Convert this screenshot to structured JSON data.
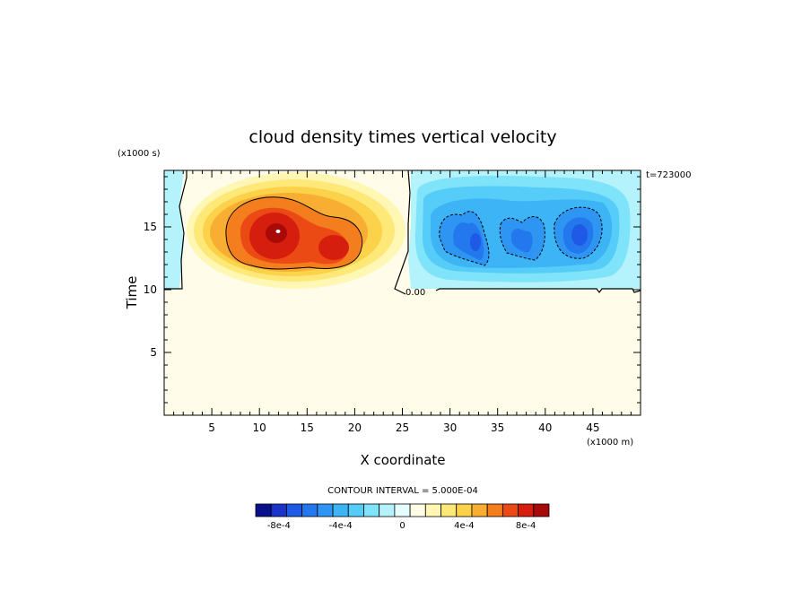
{
  "chart_data": {
    "type": "heatmap",
    "title": "cloud density times vertical velocity",
    "xlabel": "X coordinate",
    "ylabel": "Time",
    "x_scale_label": "(x1000 m)",
    "y_scale_label": "(x1000 s)",
    "time_label": "t=723000",
    "xlim": [
      0,
      50
    ],
    "ylim": [
      0,
      19.5
    ],
    "x_ticks": [
      5,
      10,
      15,
      20,
      25,
      30,
      35,
      40,
      45
    ],
    "y_ticks": [
      5,
      10,
      15
    ],
    "contour_interval_text": "CONTOUR INTERVAL = 5.000E-04",
    "contour_interval": 0.0005,
    "zero_contour_label": "0.00",
    "features": [
      {
        "name": "positive updraft maximum",
        "x": 12,
        "y": 15,
        "peak": 0.0009
      },
      {
        "name": "positive secondary maximum",
        "x": 17.5,
        "y": 13.5,
        "peak": 0.0007
      },
      {
        "name": "negative minimum west",
        "x": 33,
        "y": 14,
        "peak": -0.0007
      },
      {
        "name": "negative minimum central",
        "x": 38.5,
        "y": 14.5,
        "peak": -0.0006
      },
      {
        "name": "negative minimum east",
        "x": 44,
        "y": 14.5,
        "peak": -0.0007
      }
    ],
    "colorbar": {
      "levels": [
        -0.0009,
        -0.0008,
        -0.0007,
        -0.0006,
        -0.0005,
        -0.0004,
        -0.0003,
        -0.0002,
        -0.0001,
        0,
        0.0001,
        0.0002,
        0.0003,
        0.0004,
        0.0005,
        0.0006,
        0.0007,
        0.0008,
        0.0009
      ],
      "tick_labels": [
        "-8e-4",
        "-4e-4",
        "0",
        "4e-4",
        "8e-4"
      ],
      "tick_values": [
        -0.0008,
        -0.0004,
        0,
        0.0004,
        0.0008
      ],
      "colors": [
        "#0a0f8c",
        "#1a33c8",
        "#1e5ae6",
        "#2378ee",
        "#2e96f2",
        "#3cb4f6",
        "#55cdf8",
        "#7fe3fa",
        "#b4f3fc",
        "#e6fdfe",
        "#fffde6",
        "#fff7b3",
        "#fde878",
        "#fcd24a",
        "#f8ae32",
        "#f47d1e",
        "#ec4a14",
        "#d61e0e",
        "#a80a0a"
      ]
    }
  }
}
